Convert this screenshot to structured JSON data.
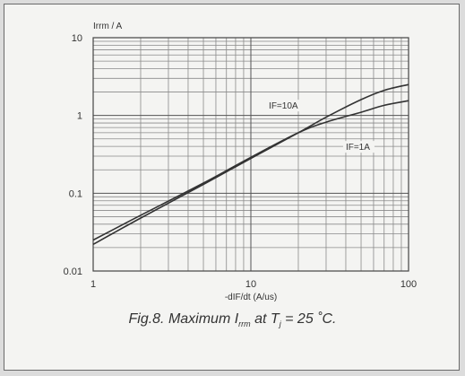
{
  "chart_data": {
    "type": "line",
    "ylabel": "Irrm / A",
    "xlabel": "-dIF/dt (A/us)",
    "x_scale": "log",
    "y_scale": "log",
    "xlim": [
      1,
      100
    ],
    "ylim": [
      0.01,
      10
    ],
    "x_ticks": [
      "1",
      "10",
      "100"
    ],
    "y_ticks": [
      "0.01",
      "0.1",
      "1",
      "10"
    ],
    "grid": true,
    "series": [
      {
        "name": "IF=10A",
        "x": [
          1,
          2,
          5,
          10,
          20,
          30,
          50,
          70,
          100
        ],
        "y": [
          0.022,
          0.048,
          0.13,
          0.28,
          0.6,
          0.95,
          1.6,
          2.1,
          2.5
        ],
        "label_x": 13,
        "label_y": 1.22
      },
      {
        "name": "IF=1A",
        "x": [
          1,
          2,
          5,
          10,
          20,
          30,
          50,
          70,
          100
        ],
        "y": [
          0.025,
          0.052,
          0.135,
          0.29,
          0.6,
          0.82,
          1.1,
          1.35,
          1.55
        ],
        "label_x": 40,
        "label_y": 0.36
      }
    ],
    "caption": {
      "prefix": "Fig.8.  Maximum I",
      "sub1": "rrm",
      "mid": " at T",
      "sub2": "j",
      "suffix": " = 25 ˚C."
    }
  }
}
